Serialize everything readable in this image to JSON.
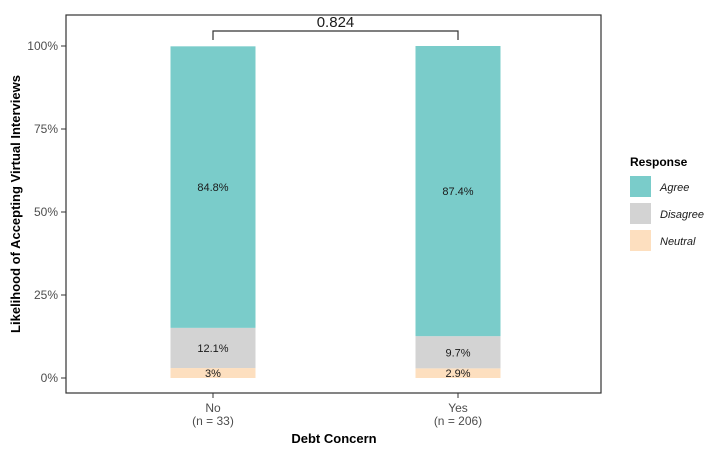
{
  "chart_data": {
    "type": "bar",
    "stacked": true,
    "ylabel": "Likelihood of Accepting Virtual Interviews",
    "xlabel": "Debt Concern",
    "yticks": [
      "0%",
      "25%",
      "50%",
      "75%",
      "100%"
    ],
    "ylim": [
      0,
      100
    ],
    "categories": [
      {
        "label": "No",
        "sub": "(n = 33)"
      },
      {
        "label": "Yes",
        "sub": "(n = 206)"
      }
    ],
    "series": [
      {
        "name": "Neutral",
        "color": "#fddfbf",
        "values": [
          3.0,
          2.9
        ],
        "labels": [
          "3%",
          "2.9%"
        ]
      },
      {
        "name": "Disagree",
        "color": "#d3d3d3",
        "values": [
          12.1,
          9.7
        ],
        "labels": [
          "12.1%",
          "9.7%"
        ]
      },
      {
        "name": "Agree",
        "color": "#7accca",
        "values": [
          84.8,
          87.4
        ],
        "labels": [
          "84.8%",
          "87.4%"
        ]
      }
    ],
    "comparison": {
      "label": "0.824"
    },
    "legend": {
      "title": "Response",
      "placement": "right",
      "items": [
        {
          "name": "Agree",
          "color": "#7accca"
        },
        {
          "name": "Disagree",
          "color": "#d3d3d3"
        },
        {
          "name": "Neutral",
          "color": "#fddfbf"
        }
      ]
    },
    "grid": false
  }
}
